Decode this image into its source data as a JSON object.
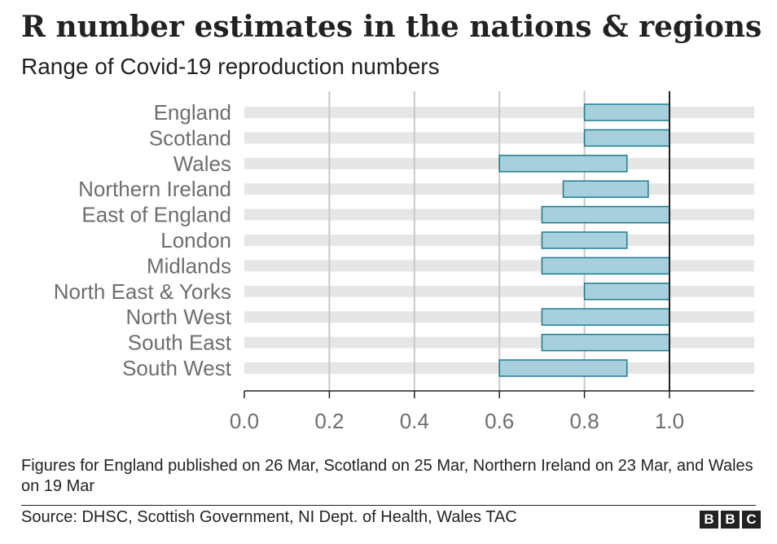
{
  "header": {
    "title": "R number estimates in the nations & regions",
    "subtitle": "Range of Covid-19 reproduction numbers"
  },
  "footer": {
    "note": "Figures for England published on 26 Mar, Scotland on 25 Mar, Northern Ireland on 23 Mar, and Wales on 19 Mar",
    "source": "Source: DHSC, Scottish Government, NI Dept. of Health, Wales TAC",
    "logo_letters": [
      "B",
      "B",
      "C"
    ]
  },
  "colors": {
    "bar_fill": "#a8cfdc",
    "bar_stroke": "#1d7d8e",
    "track": "#e6e6e6",
    "grid": "#c8c8c8",
    "reference_line": "#222222",
    "text": "#222222",
    "axis_text": "#6e6e6e"
  },
  "chart_data": {
    "type": "bar",
    "orientation": "horizontal-range",
    "categories": [
      "England",
      "Scotland",
      "Wales",
      "Northern Ireland",
      "East of England",
      "London",
      "Midlands",
      "North East & Yorks",
      "North West",
      "South East",
      "South West"
    ],
    "ranges": [
      [
        0.8,
        1.0
      ],
      [
        0.8,
        1.0
      ],
      [
        0.6,
        0.9
      ],
      [
        0.75,
        0.95
      ],
      [
        0.7,
        1.0
      ],
      [
        0.7,
        0.9
      ],
      [
        0.7,
        1.0
      ],
      [
        0.8,
        1.0
      ],
      [
        0.7,
        1.0
      ],
      [
        0.7,
        1.0
      ],
      [
        0.6,
        0.9
      ]
    ],
    "xlim": [
      0,
      1.2
    ],
    "xticks": [
      0.0,
      0.2,
      0.4,
      0.6,
      0.8,
      1.0
    ],
    "xtick_labels": [
      "0.0",
      "0.2",
      "0.4",
      "0.6",
      "0.8",
      "1.0"
    ],
    "reference_value": 1.0,
    "grid": true
  }
}
